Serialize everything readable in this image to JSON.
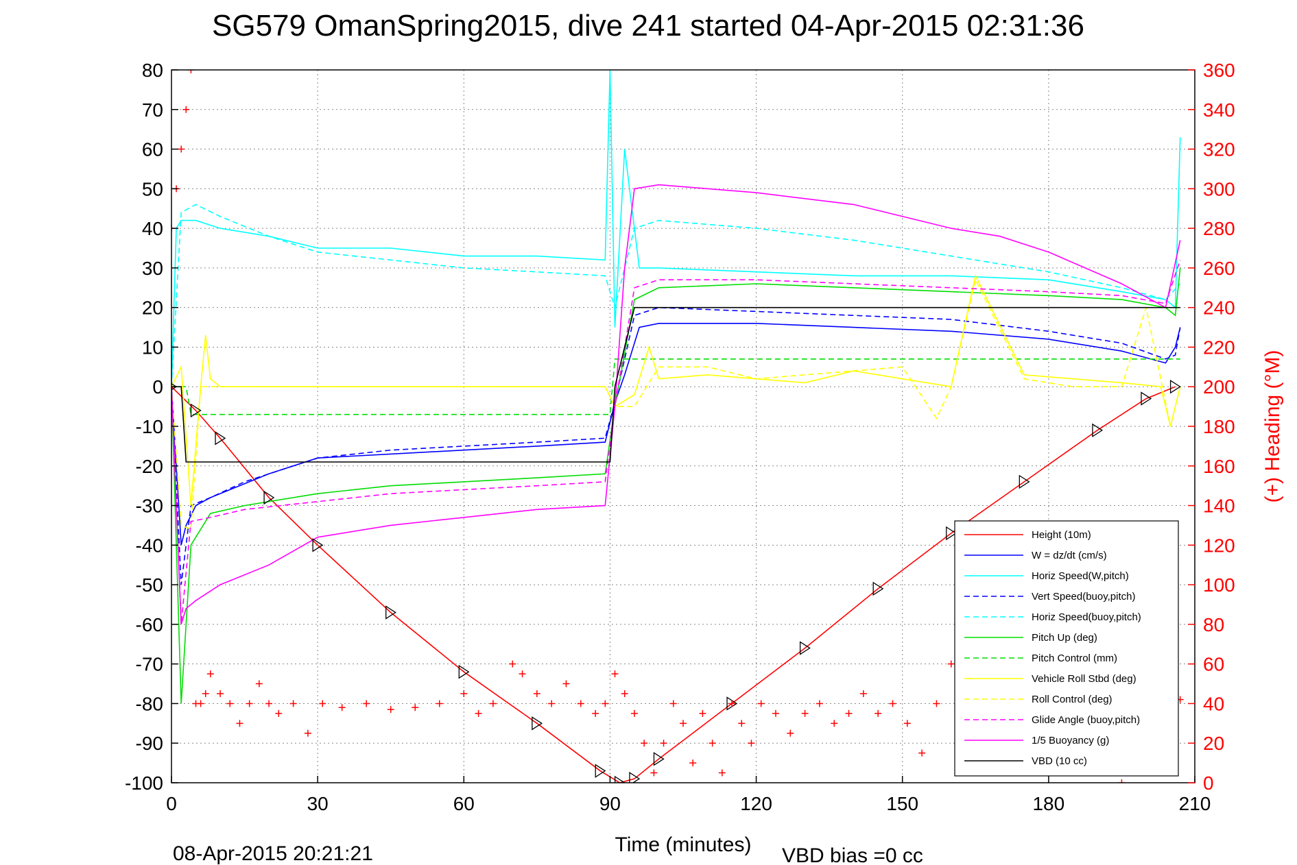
{
  "chart_data": {
    "type": "line",
    "title": "SG579 OmanSpring2015, dive 241 started 04-Apr-2015 02:31:36",
    "xlabel": "Time (minutes)",
    "ylabel": "",
    "y2label": "(+) Heading (°M)",
    "xlim": [
      0,
      210
    ],
    "ylim": [
      -100,
      80
    ],
    "y2lim": [
      0,
      360
    ],
    "xticks": [
      "0",
      "30",
      "60",
      "90",
      "120",
      "150",
      "180",
      "210"
    ],
    "yticks": [
      "80",
      "70",
      "60",
      "50",
      "40",
      "30",
      "20",
      "10",
      "0",
      "-10",
      "-20",
      "-30",
      "-40",
      "-50",
      "-60",
      "-70",
      "-80",
      "-90",
      "-100"
    ],
    "y2ticks": [
      "360",
      "340",
      "320",
      "300",
      "280",
      "260",
      "240",
      "220",
      "200",
      "180",
      "160",
      "140",
      "120",
      "100",
      "80",
      "60",
      "40",
      "20",
      "0"
    ],
    "grid": true,
    "legend_position": "bottom-right",
    "footer_left": "08-Apr-2015 20:21:21",
    "footer_right": "VBD bias =0 cc",
    "series": [
      {
        "name": "Height (10m)",
        "color": "#ff0000",
        "style": "solid",
        "x": [
          0,
          5,
          10,
          20,
          30,
          45,
          60,
          75,
          88,
          92,
          95,
          100,
          115,
          130,
          145,
          160,
          175,
          190,
          200,
          206
        ],
        "y": [
          0,
          -6,
          -13,
          -28,
          -40,
          -57,
          -72,
          -85,
          -97,
          -100,
          -99,
          -94,
          -80,
          -66,
          -51,
          -37,
          -24,
          -11,
          -3,
          0
        ]
      },
      {
        "name": "W = dz/dt (cm/s)",
        "color": "#0000ff",
        "style": "solid",
        "x": [
          0,
          1,
          2,
          3,
          5,
          8,
          12,
          20,
          30,
          45,
          60,
          75,
          89,
          91,
          93,
          96,
          100,
          120,
          140,
          160,
          180,
          195,
          204,
          206,
          207
        ],
        "y": [
          0,
          -20,
          -40,
          -35,
          -30,
          -28,
          -26,
          -22,
          -18,
          -17,
          -16,
          -15,
          -14,
          -4,
          3,
          15,
          16,
          16,
          15,
          14,
          12,
          9,
          6,
          10,
          15
        ]
      },
      {
        "name": "Horiz Speed(W,pitch)",
        "color": "#00ffff",
        "style": "solid",
        "x": [
          0,
          1,
          2,
          5,
          10,
          20,
          30,
          45,
          60,
          75,
          89,
          90,
          91,
          93,
          96,
          100,
          120,
          140,
          160,
          180,
          195,
          204,
          206,
          207
        ],
        "y": [
          0,
          40,
          42,
          42,
          40,
          38,
          35,
          35,
          33,
          33,
          32,
          80,
          15,
          60,
          30,
          30,
          29,
          28,
          28,
          27,
          24,
          22,
          20,
          63
        ]
      },
      {
        "name": "Vert Speed(buoy,pitch)",
        "color": "#0000ff",
        "style": "dashed",
        "x": [
          0,
          2,
          4,
          8,
          15,
          30,
          45,
          60,
          75,
          89,
          91,
          95,
          100,
          120,
          140,
          160,
          180,
          195,
          204,
          206,
          207
        ],
        "y": [
          0,
          -50,
          -30,
          -28,
          -24,
          -18,
          -16,
          -15,
          -14,
          -13,
          -4,
          18,
          20,
          19,
          18,
          17,
          14,
          11,
          7,
          8,
          15
        ]
      },
      {
        "name": "Horiz Speed(buoy,pitch)",
        "color": "#00ffff",
        "style": "dashed",
        "x": [
          0,
          2,
          5,
          10,
          20,
          30,
          45,
          60,
          75,
          89,
          91,
          95,
          100,
          120,
          140,
          160,
          180,
          195,
          204,
          207
        ],
        "y": [
          0,
          44,
          46,
          43,
          38,
          34,
          32,
          30,
          29,
          28,
          20,
          40,
          42,
          40,
          37,
          33,
          29,
          25,
          22,
          26
        ]
      },
      {
        "name": "Pitch Up (deg)",
        "color": "#00dd00",
        "style": "solid",
        "x": [
          0,
          2,
          4,
          8,
          15,
          30,
          45,
          60,
          75,
          89,
          91,
          95,
          100,
          120,
          140,
          160,
          180,
          195,
          204,
          206,
          207
        ],
        "y": [
          0,
          -80,
          -40,
          -32,
          -30,
          -27,
          -25,
          -24,
          -23,
          -22,
          -5,
          22,
          25,
          26,
          25,
          24,
          23,
          22,
          20,
          18,
          30
        ]
      },
      {
        "name": "Pitch Control (mm)",
        "color": "#00dd00",
        "style": "dashed",
        "x": [
          0,
          3,
          4,
          90,
          91,
          207
        ],
        "y": [
          0,
          0,
          -7,
          -7,
          7,
          7
        ]
      },
      {
        "name": "Vehicle Roll Stbd (deg)",
        "color": "#ffff00",
        "style": "solid",
        "x": [
          0,
          2,
          4,
          6,
          7,
          8,
          10,
          20,
          30,
          40,
          50,
          60,
          70,
          80,
          89,
          91,
          95,
          98,
          100,
          110,
          120,
          130,
          140,
          150,
          160,
          165,
          175,
          185,
          195,
          203,
          205,
          207
        ],
        "y": [
          0,
          5,
          -30,
          0,
          13,
          2,
          0,
          0,
          0,
          0,
          0,
          0,
          0,
          0,
          0,
          -5,
          -2,
          10,
          2,
          3,
          2,
          1,
          4,
          2,
          0,
          28,
          3,
          2,
          1,
          0,
          -10,
          0
        ]
      },
      {
        "name": "Roll Control (deg)",
        "color": "#ffff00",
        "style": "dashed",
        "x": [
          0,
          2,
          4,
          6,
          10,
          20,
          30,
          40,
          50,
          60,
          70,
          80,
          89,
          91,
          95,
          100,
          110,
          120,
          130,
          140,
          150,
          157,
          160,
          165,
          175,
          185,
          195,
          200,
          205,
          207
        ],
        "y": [
          0,
          -35,
          -36,
          0,
          0,
          0,
          0,
          0,
          0,
          0,
          0,
          0,
          0,
          -5,
          -5,
          5,
          5,
          2,
          3,
          4,
          5,
          -8,
          0,
          27,
          2,
          0,
          0,
          20,
          -10,
          0
        ]
      },
      {
        "name": "Glide Angle (buoy,pitch)",
        "color": "#ff00ff",
        "style": "dashed",
        "x": [
          0,
          2,
          4,
          8,
          15,
          30,
          45,
          60,
          75,
          89,
          91,
          95,
          100,
          120,
          140,
          160,
          180,
          195,
          204,
          207
        ],
        "y": [
          0,
          -60,
          -34,
          -33,
          -31,
          -29,
          -27,
          -26,
          -25,
          -24,
          -5,
          25,
          27,
          27,
          26,
          25,
          24,
          23,
          21,
          32
        ]
      },
      {
        "name": "1/5 Buoyancy (g)",
        "color": "#ff00ff",
        "style": "solid",
        "x": [
          0,
          2,
          3,
          5,
          10,
          20,
          30,
          45,
          60,
          75,
          89,
          91,
          93,
          95,
          100,
          120,
          140,
          160,
          170,
          180,
          195,
          204,
          207
        ],
        "y": [
          0,
          -60,
          -56,
          -54,
          -50,
          -45,
          -38,
          -35,
          -33,
          -31,
          -30,
          -5,
          30,
          50,
          51,
          49,
          46,
          40,
          38,
          34,
          26,
          20,
          37
        ]
      },
      {
        "name": "VBD (10 cc)",
        "color": "#000000",
        "style": "solid",
        "x": [
          0,
          2,
          3,
          90,
          91,
          93,
          95,
          207
        ],
        "y": [
          0,
          0,
          -19,
          -19,
          0,
          10,
          20,
          20
        ]
      }
    ],
    "heading": {
      "name": "(+) Heading (°M)",
      "color": "#ff0000",
      "marker": "+",
      "x": [
        0,
        1,
        2,
        3,
        4,
        5,
        6,
        7,
        8,
        10,
        12,
        14,
        16,
        18,
        20,
        22,
        25,
        28,
        31,
        35,
        40,
        45,
        50,
        55,
        60,
        63,
        66,
        70,
        72,
        75,
        78,
        81,
        84,
        87,
        89,
        91,
        93,
        95,
        97,
        99,
        101,
        103,
        105,
        107,
        109,
        111,
        113,
        115,
        117,
        119,
        121,
        124,
        127,
        130,
        133,
        136,
        139,
        142,
        145,
        148,
        151,
        154,
        157,
        160,
        163,
        166,
        170,
        175,
        180,
        185,
        190,
        195,
        200,
        205,
        207
      ],
      "y": [
        280,
        300,
        320,
        340,
        360,
        40,
        40,
        45,
        55,
        45,
        40,
        30,
        40,
        50,
        40,
        35,
        40,
        25,
        40,
        38,
        40,
        37,
        38,
        40,
        45,
        35,
        40,
        60,
        55,
        45,
        40,
        50,
        40,
        35,
        40,
        55,
        45,
        35,
        20,
        5,
        20,
        40,
        30,
        10,
        35,
        20,
        5,
        40,
        30,
        20,
        40,
        35,
        25,
        35,
        40,
        30,
        35,
        45,
        35,
        40,
        30,
        15,
        40,
        60,
        45,
        30,
        35,
        40,
        38,
        42,
        35,
        0,
        38,
        40,
        42
      ]
    }
  }
}
